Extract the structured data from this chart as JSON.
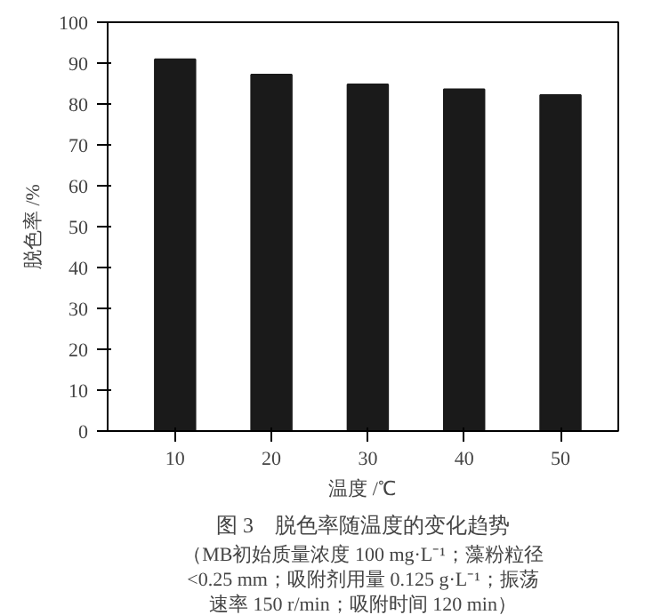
{
  "chart_data": {
    "type": "bar",
    "title": "图 3　脱色率随温度的变化趋势",
    "subtitle": "（MB初始质量浓度 100 mg·L⁻¹；藻粉粒径<0.25 mm；吸附剂用量 0.125 g·L⁻¹；振荡速率 150 r/min；吸附时间 120 min）",
    "xlabel": "温度 /℃",
    "ylabel": "脱色率 /%",
    "categories": [
      "10",
      "20",
      "30",
      "40",
      "50"
    ],
    "values": [
      90.9,
      87.2,
      84.8,
      83.6,
      82.2
    ],
    "color": "#1a1a1a",
    "ylim": [
      0,
      100
    ],
    "yticks": [
      0,
      10,
      20,
      30,
      40,
      50,
      60,
      70,
      80,
      90,
      100
    ],
    "grid": false
  }
}
